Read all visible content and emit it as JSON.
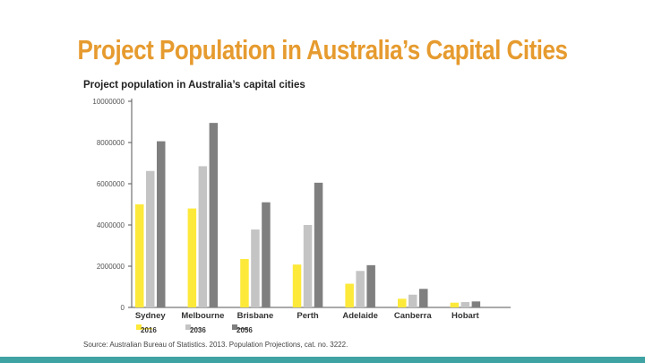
{
  "slide": {
    "title": "Project Population in Australia’s Capital Cities"
  },
  "chart_data": {
    "type": "bar",
    "title": "Project population in Australia’s capital cities",
    "xlabel": "",
    "ylabel": "",
    "categories": [
      "Sydney",
      "Melbourne",
      "Brisbane",
      "Perth",
      "Adelaide",
      "Canberra",
      "Hobart"
    ],
    "series": [
      {
        "name": "2016",
        "color": "#fde93a",
        "values": [
          5000000,
          4800000,
          2350000,
          2080000,
          1150000,
          420000,
          230000
        ]
      },
      {
        "name": "2036",
        "color": "#c4c4c4",
        "values": [
          6620000,
          6850000,
          3780000,
          4000000,
          1770000,
          620000,
          260000
        ]
      },
      {
        "name": "2056",
        "color": "#7f7f7f",
        "values": [
          8060000,
          8950000,
          5100000,
          6050000,
          2050000,
          900000,
          290000
        ]
      }
    ],
    "yticks": [
      0,
      2000000,
      4000000,
      6000000,
      8000000,
      10000000
    ],
    "ytick_labels": [
      "0",
      "2000000",
      "4000000",
      "6000000",
      "8000000",
      "10000000"
    ],
    "ylim": [
      0,
      10000000
    ],
    "grid": false,
    "legend_position": "bottom-left",
    "source": "Source: Australian Bureau of Statistics. 2013. Population Projections, cat. no. 3222."
  }
}
